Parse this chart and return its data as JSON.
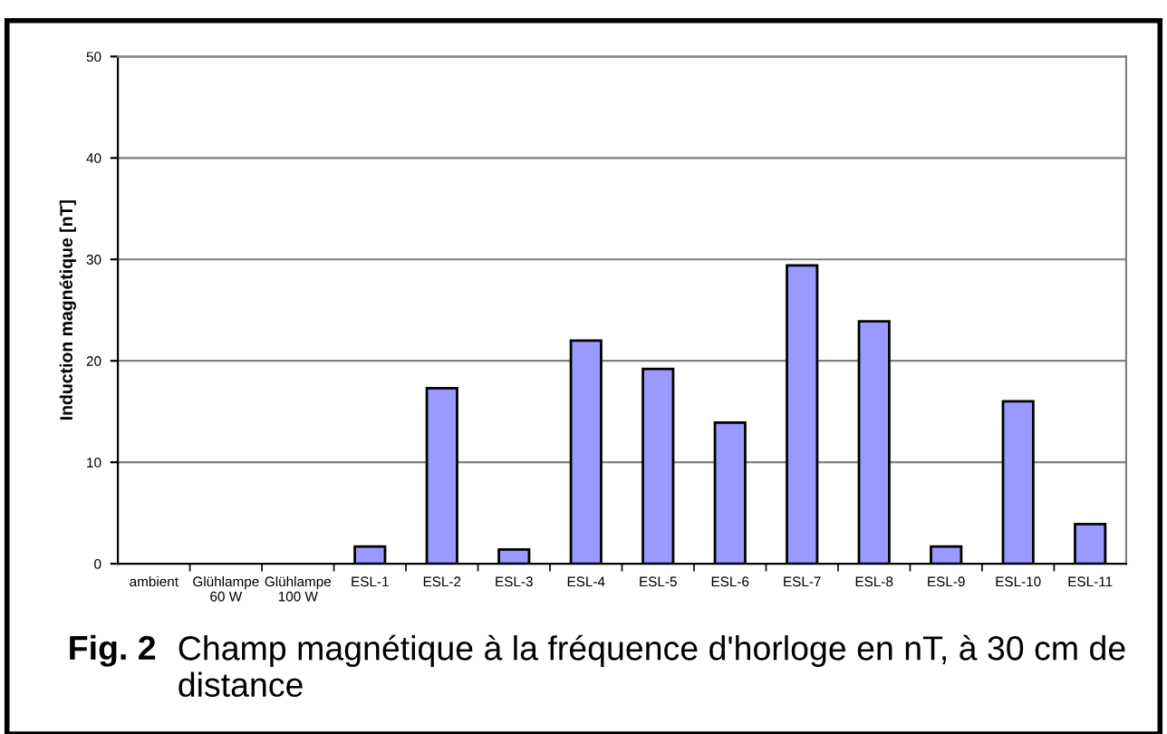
{
  "chart_data": {
    "type": "bar",
    "ylabel": "Induction magnétique [nT]",
    "categories": [
      "ambient",
      "Glühlampe\n60 W",
      "Glühlampe\n100 W",
      "ESL-1",
      "ESL-2",
      "ESL-3",
      "ESL-4",
      "ESL-5",
      "ESL-6",
      "ESL-7",
      "ESL-8",
      "ESL-9",
      "ESL-10",
      "ESL-11"
    ],
    "values": [
      0,
      0,
      0,
      1.7,
      17.3,
      1.4,
      22.0,
      19.2,
      13.9,
      29.4,
      23.9,
      1.7,
      16.0,
      3.9
    ],
    "color": "#9999ff",
    "ylim": [
      0,
      50
    ],
    "yticks": [
      0,
      10,
      20,
      30,
      40,
      50
    ],
    "grid": "y",
    "annotations": [
      "Fig. 2",
      "Champ magnétique à la fréquence d'horloge en nT, à 30 cm de distance"
    ]
  }
}
